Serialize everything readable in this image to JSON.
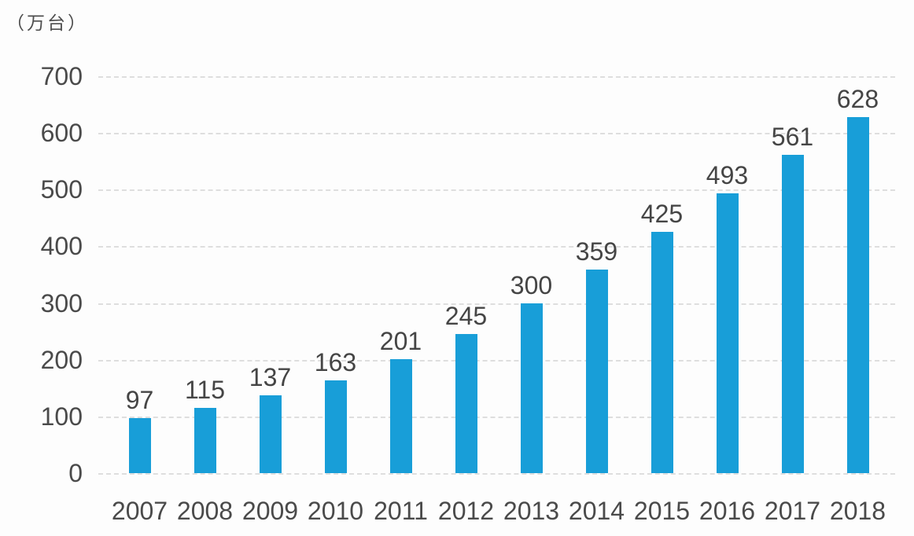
{
  "chart_data": {
    "type": "bar",
    "unit_label": "（万台）",
    "categories": [
      "2007",
      "2008",
      "2009",
      "2010",
      "2011",
      "2012",
      "2013",
      "2014",
      "2015",
      "2016",
      "2017",
      "2018"
    ],
    "values": [
      97,
      115,
      137,
      163,
      201,
      245,
      300,
      359,
      425,
      493,
      561,
      628
    ],
    "title": "",
    "xlabel": "",
    "ylabel": "万台",
    "ylim": [
      0,
      700
    ],
    "yticks": [
      0,
      100,
      200,
      300,
      400,
      500,
      600,
      700
    ],
    "grid": true,
    "legend_position": "none",
    "bar_color": "#189ED8",
    "gridline_color": "#dedede",
    "text_color": "#4a4a4a"
  }
}
